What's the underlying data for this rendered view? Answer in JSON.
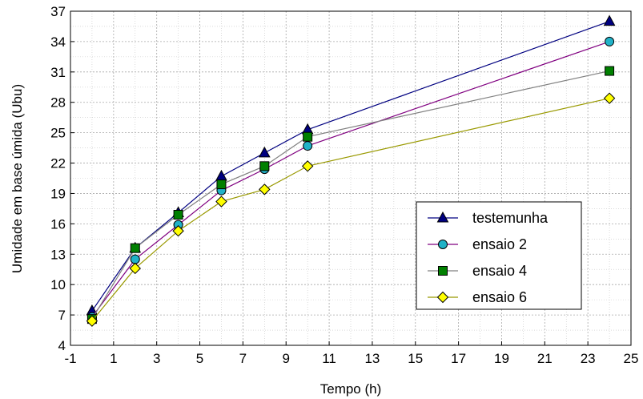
{
  "chart_data": {
    "type": "line",
    "xlabel": "Tempo (h)",
    "ylabel": "Umidade em base úmida (Ubu)",
    "xlim": [
      -1,
      25
    ],
    "ylim": [
      4,
      37
    ],
    "xticks": [
      -1,
      1,
      3,
      5,
      7,
      9,
      11,
      13,
      15,
      17,
      19,
      21,
      23,
      25
    ],
    "yticks": [
      4,
      7,
      10,
      13,
      16,
      19,
      22,
      25,
      28,
      31,
      34,
      37
    ],
    "grid": true,
    "legend_position": "right",
    "series": [
      {
        "name": "testemunha",
        "color": "#000080",
        "marker": "triangle",
        "marker_color": "#000080",
        "x": [
          0,
          2,
          4,
          6,
          8,
          10,
          24
        ],
        "y": [
          7.4,
          13.6,
          17.1,
          20.7,
          23.0,
          25.3,
          36.0
        ]
      },
      {
        "name": "ensaio 2",
        "color": "#800080",
        "marker": "circle",
        "marker_color": "#20b2c8",
        "x": [
          0,
          2,
          4,
          6,
          8,
          10,
          24
        ],
        "y": [
          6.8,
          12.5,
          15.9,
          19.3,
          21.4,
          23.7,
          34.0
        ]
      },
      {
        "name": "ensaio 4",
        "color": "#808080",
        "marker": "square",
        "marker_color": "#008000",
        "x": [
          0,
          2,
          4,
          6,
          8,
          10,
          24
        ],
        "y": [
          6.6,
          13.6,
          16.9,
          19.9,
          21.7,
          24.6,
          31.1
        ]
      },
      {
        "name": "ensaio 6",
        "color": "#999900",
        "marker": "diamond",
        "marker_color": "#ffff00",
        "x": [
          0,
          2,
          4,
          6,
          8,
          10,
          24
        ],
        "y": [
          6.4,
          11.6,
          15.3,
          18.2,
          19.4,
          21.7,
          28.4
        ]
      }
    ]
  }
}
